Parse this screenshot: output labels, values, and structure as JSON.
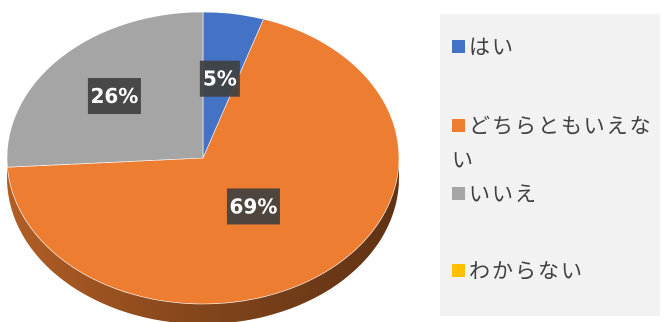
{
  "chart_data": {
    "type": "pie",
    "title": "",
    "categories": [
      "はい",
      "どちらともいえない",
      "いいえ",
      "わからない"
    ],
    "values": [
      5,
      69,
      26,
      0
    ],
    "labels": [
      "5%",
      "69%",
      "26%",
      ""
    ],
    "colors": [
      "#4472c4",
      "#ed7d31",
      "#a5a5a5",
      "#ffc000"
    ],
    "legend": "right",
    "style": "3d"
  }
}
